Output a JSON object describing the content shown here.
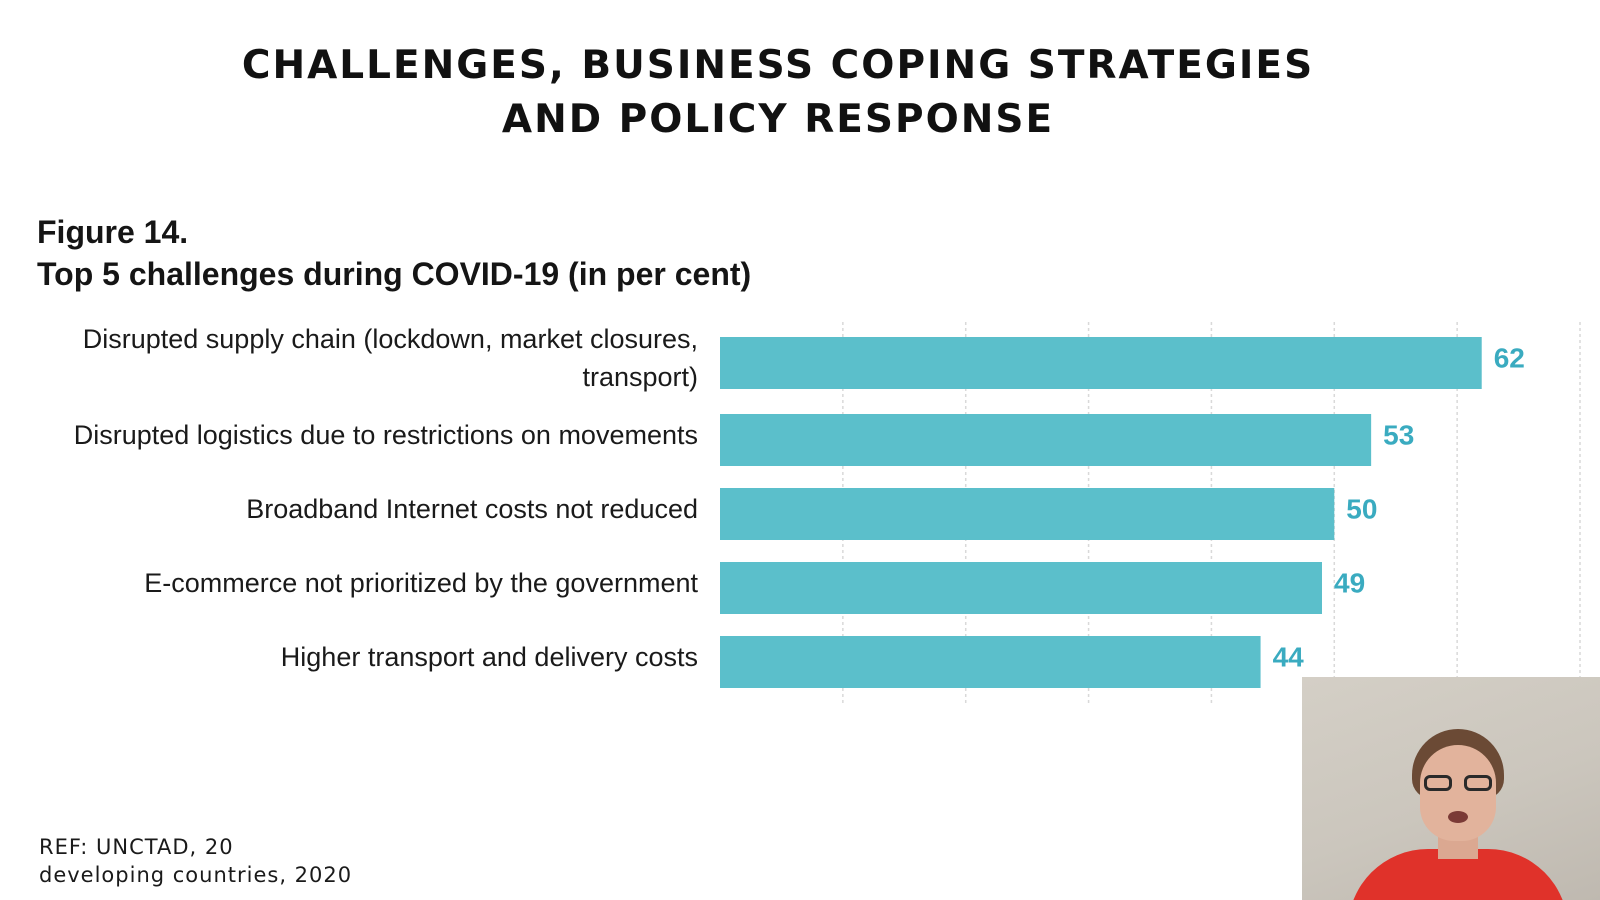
{
  "slide": {
    "title_line_1": "CHALLENGES, BUSINESS COPING STRATEGIES",
    "title_line_2": "AND POLICY RESPONSE",
    "reference_line_1": "REF: UNCTAD, 20",
    "reference_line_2": "developing countries, 2020"
  },
  "chart_data": {
    "type": "bar",
    "orientation": "horizontal",
    "figure_number": "Figure 14.",
    "title": "Top 5 challenges during COVID-19 (in per cent)",
    "categories": [
      [
        "Disrupted supply chain (lockdown, market closures,",
        "transport)"
      ],
      [
        "Disrupted logistics due to restrictions on movements"
      ],
      [
        "Broadband Internet costs not reduced"
      ],
      [
        "E-commerce not prioritized by the government"
      ],
      [
        "Higher transport and delivery costs"
      ]
    ],
    "values": [
      62,
      53,
      50,
      49,
      44
    ],
    "xlim": [
      0,
      70
    ],
    "grid": true,
    "bar_color": "#5bbfcb",
    "value_label_color": "#3aabc0",
    "gridline_color": "#d9d9d9"
  },
  "webcam": {
    "icon": "speaker-video-feed",
    "shirt_color": "#e0322a"
  }
}
